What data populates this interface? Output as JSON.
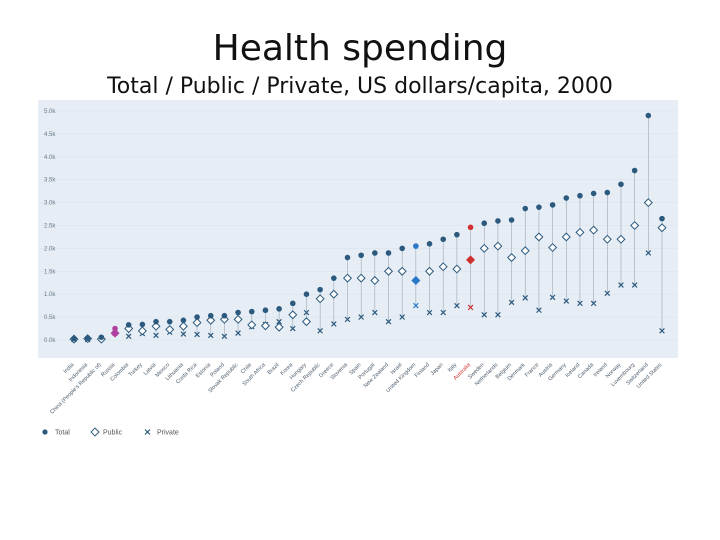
{
  "slide": {
    "title": "Health spending",
    "subtitle": "Total / Public / Private, US dollars/capita, 2000"
  },
  "chart_data": {
    "type": "scatter",
    "yticks": [
      "0.0k",
      "0.5k",
      "1.0k",
      "1.5k",
      "2.0k",
      "2.5k",
      "3.0k",
      "3.5k",
      "4.0k",
      "4.5k",
      "5.0k"
    ],
    "ylim": [
      0,
      5000
    ],
    "legend": {
      "position": "bottom-left",
      "labels": [
        "Total",
        "Public",
        "Private"
      ]
    },
    "colors": {
      "total": "#2c5a7e",
      "public": "#2c5a7e",
      "private": "#2c5a7e",
      "highlight_purple": "#b040a0",
      "highlight_blue": "#2a78c8",
      "highlight_red": "#d03030",
      "background": "#e6edf5"
    },
    "highlight_category": "Australia",
    "categories": [
      "India",
      "Indonesia",
      "China (People's Republic of)",
      "Russia",
      "Colombia",
      "Turkey",
      "Latvia",
      "Mexico",
      "Lithuania",
      "Costa Rica",
      "Estonia",
      "Poland",
      "Slovak Republic",
      "Chile",
      "South Africa",
      "Brazil",
      "Korea",
      "Hungary",
      "Czech Republic",
      "Greece",
      "Slovenia",
      "Spain",
      "Portugal",
      "New Zealand",
      "Israel",
      "United Kingdom",
      "Finland",
      "Japan",
      "Italy",
      "Australia",
      "Sweden",
      "Netherlands",
      "Belgium",
      "Denmark",
      "France",
      "Austria",
      "Germany",
      "Iceland",
      "Canada",
      "Ireland",
      "Norway",
      "Luxembourg",
      "Switzerland",
      "United States"
    ],
    "series": [
      {
        "name": "Total",
        "marker": "circle",
        "values": [
          30,
          40,
          60,
          250,
          330,
          340,
          400,
          400,
          430,
          500,
          530,
          530,
          600,
          620,
          650,
          680,
          800,
          1000,
          1100,
          1350,
          1800,
          1850,
          1900,
          1900,
          2000,
          2050,
          2100,
          2200,
          2300,
          2460,
          2550,
          2600,
          2620,
          2870,
          2900,
          2950,
          3100,
          3150,
          3200,
          3220,
          3400,
          3700,
          4900,
          2650
        ]
      },
      {
        "name": "Public",
        "marker": "diamond",
        "values": [
          20,
          30,
          20,
          150,
          250,
          200,
          300,
          230,
          300,
          380,
          430,
          450,
          450,
          330,
          310,
          280,
          550,
          400,
          900,
          1000,
          1350,
          1350,
          1300,
          1500,
          1500,
          1300,
          1500,
          1600,
          1550,
          1750,
          2000,
          2050,
          1800,
          1950,
          2250,
          2020,
          2250,
          2350,
          2400,
          2200,
          2200,
          2500,
          3000,
          2450
        ]
      },
      {
        "name": "Private",
        "marker": "cross",
        "values": [
          10,
          10,
          30,
          150,
          80,
          140,
          100,
          170,
          130,
          120,
          100,
          80,
          150,
          290,
          340,
          400,
          250,
          600,
          200,
          350,
          450,
          500,
          600,
          400,
          500,
          750,
          600,
          600,
          750,
          710,
          550,
          550,
          820,
          920,
          650,
          930,
          850,
          800,
          800,
          1020,
          1200,
          1200,
          1900,
          200
        ]
      }
    ]
  }
}
